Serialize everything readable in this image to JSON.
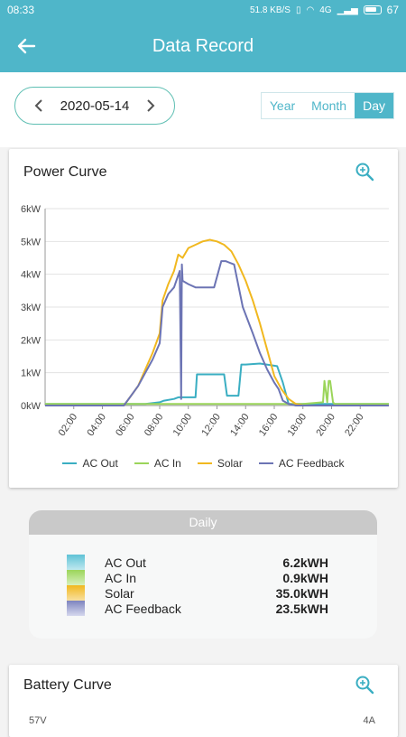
{
  "status": {
    "time": "08:33",
    "net_speed": "51.8 KB/S",
    "signal": "4G",
    "battery": "67"
  },
  "appbar": {
    "title": "Data Record"
  },
  "controls": {
    "date": "2020-05-14",
    "tabs": [
      "Year",
      "Month",
      "Day"
    ],
    "active_tab": "Day"
  },
  "power_card": {
    "title": "Power Curve"
  },
  "battery_card": {
    "title": "Battery Curve",
    "left_tick": "57V",
    "right_tick": "4A"
  },
  "chart_data": {
    "type": "line",
    "title": "",
    "y_ticks": [
      "0kW",
      "1kW",
      "2kW",
      "3kW",
      "4kW",
      "5kW",
      "6kW"
    ],
    "ylim": [
      0,
      6
    ],
    "x_ticks": [
      "02:00",
      "04:00",
      "06:00",
      "08:00",
      "10:00",
      "12:00",
      "14:00",
      "16:00",
      "18:00",
      "20:00",
      "22:00"
    ],
    "xlim": [
      0,
      24
    ],
    "grid": true,
    "legend_position": "bottom",
    "series": [
      {
        "name": "AC Out",
        "color": "#3aaec2",
        "x": [
          0,
          5.5,
          7,
          8,
          8.3,
          9,
          9.3,
          9.7,
          10.5,
          10.6,
          11,
          12.5,
          12.7,
          13.5,
          13.7,
          14,
          15,
          16.2,
          16.6,
          17,
          24
        ],
        "y": [
          0.05,
          0.05,
          0.05,
          0.1,
          0.15,
          0.2,
          0.25,
          0.25,
          0.25,
          0.95,
          0.95,
          0.95,
          0.3,
          0.3,
          1.25,
          1.25,
          1.28,
          1.2,
          0.7,
          0.05,
          0.05
        ]
      },
      {
        "name": "AC In",
        "color": "#9bd55a",
        "x": [
          0,
          18,
          19.4,
          19.5,
          19.7,
          19.8,
          19.9,
          20.1,
          20.2,
          24
        ],
        "y": [
          0.05,
          0.05,
          0.1,
          0.75,
          0.1,
          0.75,
          0.75,
          0.1,
          0.05,
          0.05
        ]
      },
      {
        "name": "Solar",
        "color": "#f1b81f",
        "x": [
          0,
          5.5,
          6,
          6.5,
          7,
          7.5,
          8,
          8.2,
          8.6,
          9,
          9.3,
          9.6,
          10,
          10.5,
          11,
          11.5,
          12,
          12.5,
          13,
          13.5,
          14,
          14.5,
          15,
          15.5,
          16,
          16.5,
          17,
          17.5,
          18,
          24
        ],
        "y": [
          0,
          0,
          0.3,
          0.6,
          1.1,
          1.6,
          2.2,
          3.2,
          3.7,
          4.1,
          4.6,
          4.5,
          4.8,
          4.9,
          5.0,
          5.05,
          5.0,
          4.9,
          4.7,
          4.3,
          3.8,
          3.2,
          2.5,
          1.7,
          0.9,
          0.5,
          0.2,
          0.05,
          0,
          0
        ]
      },
      {
        "name": "AC Feedback",
        "color": "#6c74b4",
        "x": [
          0,
          5.5,
          6,
          6.5,
          7,
          7.5,
          8,
          8.2,
          8.6,
          9,
          9.4,
          9.5,
          9.55,
          9.6,
          10,
          10.5,
          10.8,
          11.2,
          11.8,
          12.3,
          12.6,
          13.2,
          13.8,
          14.5,
          15,
          15.5,
          16,
          16.3,
          16.6,
          17,
          17.5,
          24
        ],
        "y": [
          0,
          0,
          0.3,
          0.6,
          1.0,
          1.4,
          1.9,
          3.0,
          3.4,
          3.6,
          4.1,
          0.2,
          4.3,
          3.8,
          3.7,
          3.6,
          3.6,
          3.6,
          3.6,
          4.4,
          4.4,
          4.3,
          3.0,
          2.2,
          1.6,
          1.1,
          0.7,
          0.5,
          0.15,
          0.05,
          0,
          0
        ]
      }
    ]
  },
  "daily": {
    "title": "Daily",
    "rows": [
      {
        "label": "AC Out",
        "value": "6.2kWH",
        "c1": "#5fc3d6",
        "c2": "#bfe8ef"
      },
      {
        "label": "AC In",
        "value": "0.9kWH",
        "c1": "#9bd55a",
        "c2": "#d8f0bd"
      },
      {
        "label": "Solar",
        "value": "35.0kWH",
        "c1": "#f1b81f",
        "c2": "#f8e0a0"
      },
      {
        "label": "AC Feedback",
        "value": "23.5kWH",
        "c1": "#7d83bf",
        "c2": "#d6d8ee"
      }
    ]
  }
}
